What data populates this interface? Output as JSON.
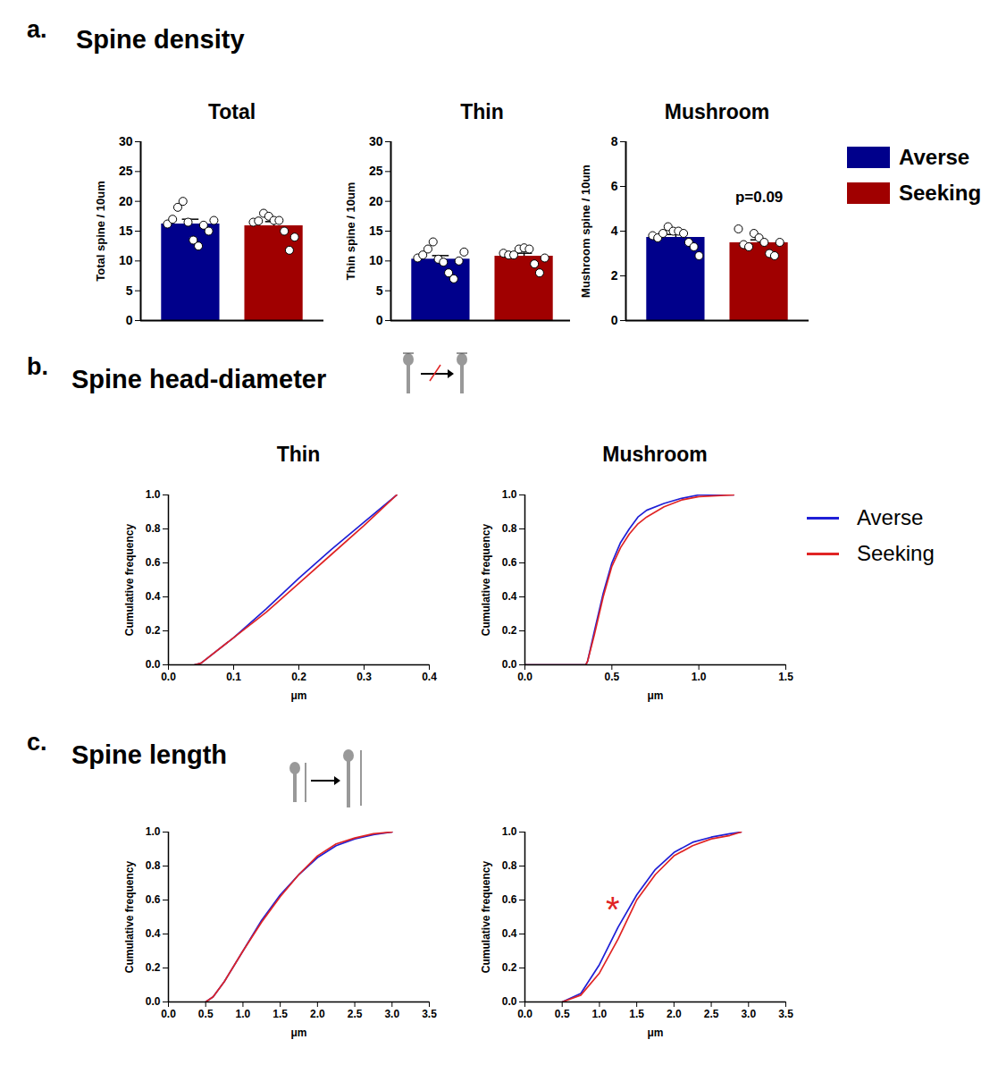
{
  "panels": [
    {
      "label": "a.",
      "title": "Spine density"
    },
    {
      "label": "b.",
      "title": "Spine head-diameter"
    },
    {
      "label": "c.",
      "title": "Spine length"
    }
  ],
  "chart_data": [
    {
      "type": "bar",
      "title": "Total",
      "ylabel": "Total spine / 10um",
      "categories": [
        "Averse",
        "Seeking"
      ],
      "values": [
        16.2,
        15.9
      ],
      "error": [
        0.8,
        0.7
      ],
      "points": [
        [
          16.2,
          17.0,
          19.0,
          20.0,
          16.5,
          13.5,
          12.5,
          16.0,
          15.0,
          16.8
        ],
        [
          16.5,
          16.7,
          18.0,
          17.5,
          16.8,
          16.8,
          15.0,
          11.8,
          14.0
        ]
      ],
      "colors": [
        "#00008b",
        "#a00000"
      ],
      "ylim": [
        0,
        30
      ],
      "yticks": [
        0,
        5,
        10,
        15,
        20,
        25,
        30
      ],
      "tick_labels": "y"
    },
    {
      "type": "bar",
      "title": "Thin",
      "ylabel": "Thin spine / 10um",
      "categories": [
        "Averse",
        "Seeking"
      ],
      "values": [
        10.3,
        10.8
      ],
      "error": [
        0.6,
        0.5
      ],
      "points": [
        [
          10.5,
          11.0,
          12.0,
          13.2,
          10.3,
          9.8,
          8.0,
          7.0,
          10.0,
          11.5
        ],
        [
          11.3,
          11.0,
          11.0,
          12.0,
          12.2,
          12.0,
          9.5,
          8.0,
          10.5
        ]
      ],
      "colors": [
        "#00008b",
        "#a00000"
      ],
      "ylim": [
        0,
        30
      ],
      "yticks": [
        0,
        5,
        10,
        15,
        20,
        25,
        30
      ],
      "tick_labels": "y"
    },
    {
      "type": "bar",
      "title": "Mushroom",
      "ylabel": "Mushroom spine / 10um",
      "categories": [
        "Averse",
        "Seeking"
      ],
      "values": [
        3.72,
        3.48
      ],
      "error": [
        0.13,
        0.13
      ],
      "points": [
        [
          3.8,
          3.7,
          3.9,
          4.2,
          4.0,
          4.0,
          3.9,
          3.5,
          3.3,
          2.9
        ],
        [
          4.1,
          3.4,
          3.3,
          3.9,
          3.7,
          3.5,
          3.0,
          2.9,
          3.5
        ]
      ],
      "colors": [
        "#00008b",
        "#a00000"
      ],
      "ylim": [
        0,
        8
      ],
      "yticks": [
        0,
        2,
        4,
        6,
        8
      ],
      "tick_labels": "y",
      "annotations": [
        {
          "text": "p=0.09",
          "category": "Seeking"
        }
      ],
      "legend": "right"
    },
    {
      "type": "line",
      "title": "Thin",
      "xlabel": "μm",
      "ylabel": "Cumulative frequency",
      "x": [
        0.04,
        0.05,
        0.1,
        0.15,
        0.2,
        0.25,
        0.3,
        0.35
      ],
      "series": [
        {
          "name": "Averse",
          "color": "#1f1fd6",
          "values": [
            0,
            0.01,
            0.16,
            0.33,
            0.51,
            0.68,
            0.84,
            1.0
          ]
        },
        {
          "name": "Seeking",
          "color": "#e02424",
          "values": [
            0,
            0.01,
            0.16,
            0.31,
            0.48,
            0.65,
            0.82,
            1.0
          ]
        }
      ],
      "xlim": [
        0,
        0.4
      ],
      "xticks": [
        {
          "value": 0,
          "label": "0.0"
        },
        0.1,
        0.2,
        0.3,
        0.4
      ],
      "ylim": [
        0,
        1
      ],
      "yticks": [
        {
          "value": 0,
          "label": "0.0"
        },
        0.2,
        0.4,
        0.6,
        0.8,
        {
          "value": 1,
          "label": "1.0"
        }
      ]
    },
    {
      "type": "line",
      "title": "Mushroom",
      "xlabel": "μm",
      "ylabel": "Cumulative frequency",
      "x": [
        0,
        0.35,
        0.36,
        0.4,
        0.45,
        0.5,
        0.55,
        0.6,
        0.65,
        0.7,
        0.8,
        0.9,
        1.0,
        1.2
      ],
      "series": [
        {
          "name": "Averse",
          "color": "#1f1fd6",
          "values": [
            0,
            0,
            0.02,
            0.2,
            0.42,
            0.6,
            0.72,
            0.8,
            0.87,
            0.91,
            0.95,
            0.98,
            1.0,
            1.0
          ]
        },
        {
          "name": "Seeking",
          "color": "#e02424",
          "values": [
            0,
            0,
            0.02,
            0.18,
            0.4,
            0.58,
            0.69,
            0.77,
            0.83,
            0.87,
            0.93,
            0.97,
            0.99,
            1.0
          ]
        }
      ],
      "xlim": [
        0,
        1.5
      ],
      "xticks": [
        {
          "value": 0,
          "label": "0.0"
        },
        0.5,
        {
          "value": 1,
          "label": "1.0"
        },
        1.5
      ],
      "ylim": [
        0,
        1
      ],
      "yticks": [
        {
          "value": 0,
          "label": "0.0"
        },
        0.2,
        0.4,
        0.6,
        0.8,
        {
          "value": 1,
          "label": "1.0"
        }
      ],
      "legend": "right"
    },
    {
      "type": "line",
      "xlabel": "μm",
      "ylabel": "Cumulative frequency",
      "x": [
        0.5,
        0.6,
        0.75,
        1.0,
        1.25,
        1.5,
        1.75,
        2.0,
        2.25,
        2.5,
        2.75,
        3.0
      ],
      "series": [
        {
          "name": "Averse",
          "color": "#1f1fd6",
          "values": [
            0,
            0.03,
            0.12,
            0.3,
            0.48,
            0.63,
            0.75,
            0.85,
            0.92,
            0.96,
            0.985,
            1.0
          ]
        },
        {
          "name": "Seeking",
          "color": "#e02424",
          "values": [
            0,
            0.03,
            0.12,
            0.3,
            0.47,
            0.62,
            0.75,
            0.86,
            0.93,
            0.965,
            0.99,
            1.0
          ]
        }
      ],
      "xlim": [
        0,
        3.5
      ],
      "xticks": [
        {
          "value": 0,
          "label": "0.0"
        },
        0.5,
        {
          "value": 1,
          "label": "1.0"
        },
        1.5,
        {
          "value": 2,
          "label": "2.0"
        },
        2.5,
        {
          "value": 3,
          "label": "3.0"
        },
        3.5
      ],
      "ylim": [
        0,
        1
      ],
      "yticks": [
        {
          "value": 0,
          "label": "0.0"
        },
        0.2,
        0.4,
        0.6,
        0.8,
        {
          "value": 1,
          "label": "1.0"
        }
      ]
    },
    {
      "type": "line",
      "xlabel": "μm",
      "ylabel": "Cumulative frequency",
      "x": [
        0.5,
        0.75,
        1.0,
        1.25,
        1.5,
        1.75,
        2.0,
        2.25,
        2.5,
        2.75,
        2.9
      ],
      "series": [
        {
          "name": "Averse",
          "color": "#1f1fd6",
          "values": [
            0,
            0.05,
            0.22,
            0.44,
            0.63,
            0.78,
            0.88,
            0.94,
            0.97,
            0.99,
            1.0
          ]
        },
        {
          "name": "Seeking",
          "color": "#e02424",
          "values": [
            0,
            0.04,
            0.17,
            0.37,
            0.6,
            0.75,
            0.86,
            0.92,
            0.96,
            0.98,
            1.0
          ]
        }
      ],
      "xlim": [
        0,
        3.5
      ],
      "xticks": [
        {
          "value": 0,
          "label": "0.0"
        },
        0.5,
        {
          "value": 1,
          "label": "1.0"
        },
        1.5,
        {
          "value": 2,
          "label": "2.0"
        },
        2.5,
        {
          "value": 3,
          "label": "3.0"
        },
        3.5
      ],
      "ylim": [
        0,
        1
      ],
      "yticks": [
        {
          "value": 0,
          "label": "0.0"
        },
        0.2,
        0.4,
        0.6,
        0.8,
        {
          "value": 1,
          "label": "1.0"
        }
      ],
      "annotations": [
        {
          "text": "*"
        }
      ]
    }
  ]
}
